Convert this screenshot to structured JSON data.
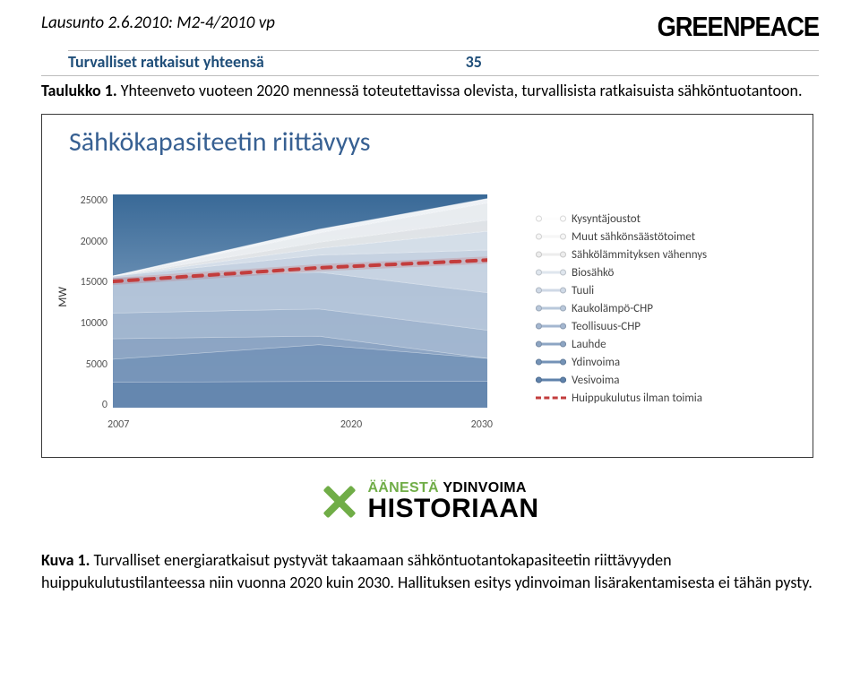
{
  "header": {
    "doc_ref": "Lausunto 2.6.2010: M2-4/2010 vp",
    "brand": "GREENPEACE"
  },
  "summary": {
    "label": "Turvalliset ratkaisut yhteensä",
    "value": "35"
  },
  "table_caption": {
    "ref": "Taulukko 1.",
    "text": " Yhteenveto vuoteen 2020 mennessä toteutettavissa olevista, turvallisista ratkaisuista sähköntuotantoon."
  },
  "chart": {
    "title": "Sähkökapasiteetin riittävyys",
    "type": "area",
    "y_axis_title": "MW",
    "ylim": [
      0,
      25000
    ],
    "ytick_step": 5000,
    "y_ticks": [
      "25000",
      "20000",
      "15000",
      "10000",
      "5000",
      "0"
    ],
    "x_categories": [
      "2007",
      "2020",
      "2030"
    ],
    "bg_gradient_top": "#396997",
    "bg_gradient_bottom": "#a8c0d8",
    "frame_border": "#3a3a3a",
    "series": [
      {
        "name": "Kysyntäjoustot",
        "style": "line",
        "color": "#fdfdfd",
        "thin": true,
        "vals": [
          0,
          400,
          500
        ]
      },
      {
        "name": "Muut sähkönsäästötoimet",
        "style": "line",
        "color": "#f6f6f6",
        "thin": true,
        "vals": [
          0,
          1100,
          2000
        ]
      },
      {
        "name": "Sähkölämmityksen vähennys",
        "style": "line",
        "color": "#ededed",
        "thin": true,
        "vals": [
          0,
          700,
          1300
        ]
      },
      {
        "name": "Biosähkö",
        "style": "fill",
        "color": "#dfe6ee",
        "thin": true,
        "vals": [
          0,
          800,
          2200
        ]
      },
      {
        "name": "Tuuli",
        "style": "fill",
        "color": "#cfd9e6",
        "thin": true,
        "vals": [
          130,
          2000,
          5000
        ]
      },
      {
        "name": "Kaukolämpö-CHP",
        "style": "fill",
        "color": "#b9c8db",
        "thin": true,
        "vals": [
          4200,
          4300,
          4400
        ]
      },
      {
        "name": "Teollisuus-CHP",
        "style": "fill",
        "color": "#a4b7d0",
        "thin": true,
        "vals": [
          3000,
          3200,
          3300
        ]
      },
      {
        "name": "Lauhde",
        "style": "fill",
        "color": "#8da5c3",
        "thin": true,
        "vals": [
          2400,
          1000,
          0
        ]
      },
      {
        "name": "Ydinvoima",
        "style": "fill",
        "color": "#7493b7",
        "thin": true,
        "vals": [
          2700,
          4300,
          2700
        ]
      },
      {
        "name": "Vesivoima",
        "style": "fill",
        "color": "#5f82ab",
        "thin": true,
        "vals": [
          3000,
          3100,
          3100
        ]
      },
      {
        "name": "Huippukulutus ilman toimia",
        "style": "dashed",
        "color": "#c33d3d",
        "thin": false,
        "vals": [
          14800,
          16400,
          17300
        ]
      }
    ],
    "title_color": "#376092",
    "title_fontsize": 30,
    "tick_fontsize": 12,
    "legend_fontsize": 13
  },
  "campaign": {
    "line1_a": "ÄÄNESTÄ",
    "line1_b": " YDINVOIMA",
    "line2": "HISTORIAAN",
    "accent_color": "#70ad47",
    "text_color": "#000000"
  },
  "figure_caption": {
    "ref": "Kuva 1.",
    "text": " Turvalliset energiaratkaisut pystyvät takaamaan sähköntuotantokapasiteetin riittävyyden huippukulutustilanteessa niin vuonna 2020 kuin 2030. Hallituksen esitys ydinvoiman lisärakentamisesta ei tähän pysty."
  }
}
